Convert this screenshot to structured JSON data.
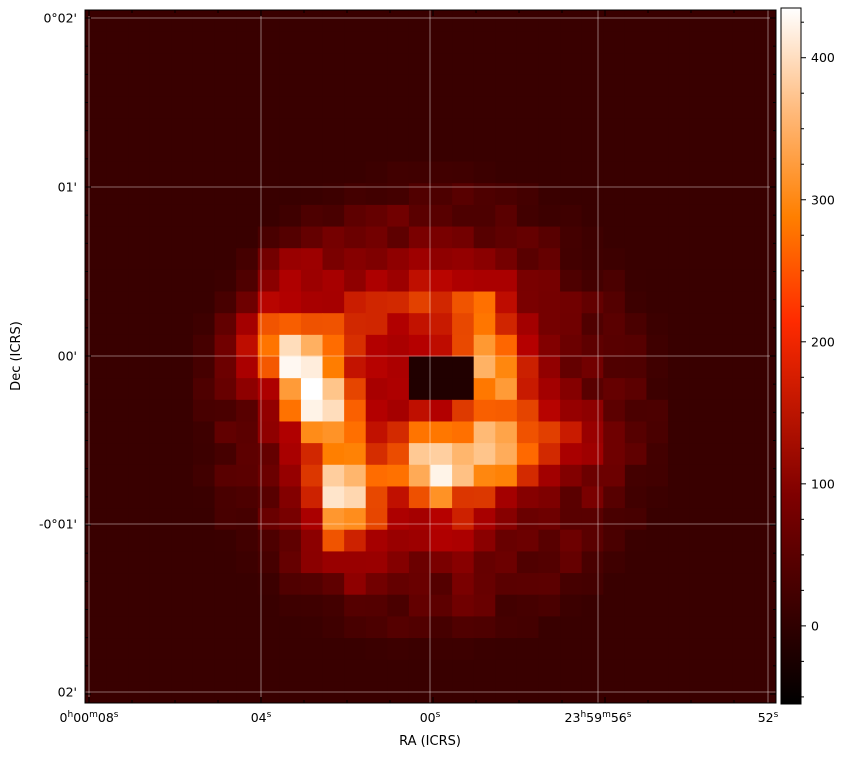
{
  "chart_data": {
    "type": "heatmap",
    "xlabel": "RA (ICRS)",
    "ylabel": "Dec (ICRS)",
    "grid": true,
    "colormap": "gist_heat",
    "colorbar": {
      "vmin": -55,
      "vmax": 435,
      "ticks": [
        0,
        100,
        200,
        300,
        400
      ],
      "tick_labels": [
        "0",
        "100",
        "200",
        "300",
        "400"
      ]
    },
    "x_ticks": [
      {
        "label": "0h00m08s",
        "main": "0",
        "parts": [
          {
            "t": "h",
            "sup": true
          },
          {
            "t": "00",
            "sup": false
          },
          {
            "t": "m",
            "sup": true
          },
          {
            "t": "08",
            "sup": false
          },
          {
            "t": "s",
            "sup": true
          }
        ]
      },
      {
        "label": "04s",
        "main": "04",
        "parts": [
          {
            "t": "s",
            "sup": true
          }
        ]
      },
      {
        "label": "00s",
        "main": "00",
        "parts": [
          {
            "t": "s",
            "sup": true
          }
        ]
      },
      {
        "label": "23h59m56s",
        "main": "23",
        "parts": [
          {
            "t": "h",
            "sup": true
          },
          {
            "t": "59",
            "sup": false
          },
          {
            "t": "m",
            "sup": true
          },
          {
            "t": "56",
            "sup": false
          },
          {
            "t": "s",
            "sup": true
          }
        ]
      },
      {
        "label": "52s",
        "main": "52",
        "parts": [
          {
            "t": "s",
            "sup": true
          }
        ]
      }
    ],
    "y_ticks": [
      "0°02'",
      "01'",
      "00'",
      "-0°01'",
      "02'"
    ],
    "grid_cells": 32,
    "background_value": 22,
    "hot_spots": [
      {
        "x": 10,
        "y": 16,
        "value": 400
      },
      {
        "x": 11,
        "y": 18.5,
        "value": 410
      },
      {
        "x": 12,
        "y": 22,
        "value": 420
      },
      {
        "x": 16,
        "y": 21,
        "value": 380
      },
      {
        "x": 19,
        "y": 20.5,
        "value": 370
      },
      {
        "x": 19,
        "y": 17,
        "value": 330
      },
      {
        "x": 18.5,
        "y": 14,
        "value": 300
      },
      {
        "x": 16,
        "y": 13,
        "value": 220
      },
      {
        "x": 8,
        "y": 15,
        "value": 260
      },
      {
        "x": 9.5,
        "y": 12,
        "value": 240
      },
      {
        "x": 13,
        "y": 14,
        "value": 270
      },
      {
        "x": 22,
        "y": 20,
        "value": 230
      },
      {
        "x": 12,
        "y": 24.5,
        "value": 250
      },
      {
        "x": 17,
        "y": 23.5,
        "value": 200
      }
    ]
  }
}
